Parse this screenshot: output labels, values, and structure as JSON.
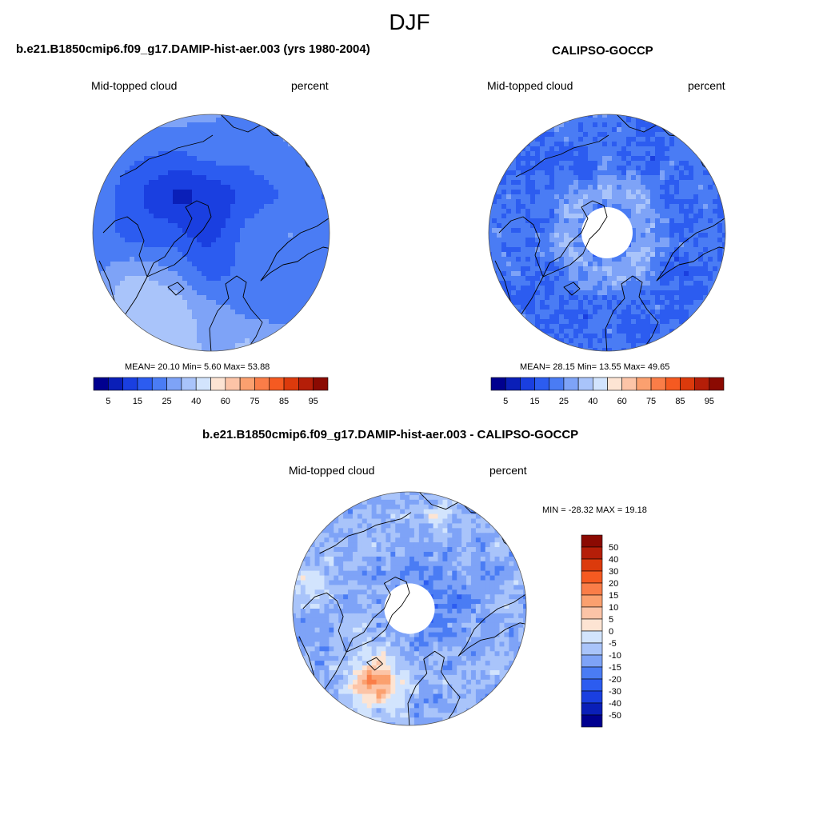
{
  "figure": {
    "season": "DJF"
  },
  "panels": [
    {
      "title": "b.e21.B1850cmip6.f09_g17.DAMIP-hist-aer.003 (yrs 1980-2004)",
      "left_label": "Mid-topped cloud",
      "right_label": "percent",
      "stats": "MEAN=  20.10  Min=   5.60  Max=  53.88",
      "field": "model"
    },
    {
      "title": "CALIPSO-GOCCP",
      "left_label": "Mid-topped cloud",
      "right_label": "percent",
      "stats": "MEAN=  28.15  Min=  13.55  Max=  49.65",
      "field": "obs"
    },
    {
      "title": "b.e21.B1850cmip6.f09_g17.DAMIP-hist-aer.003 - CALIPSO-GOCCP",
      "left_label": "Mid-topped cloud",
      "right_label": "percent",
      "stats": "MIN = -28.32 MAX =  19.18",
      "field": "diff"
    }
  ],
  "colorbars": {
    "abs": {
      "ticks": [
        "5",
        "15",
        "25",
        "40",
        "60",
        "75",
        "85",
        "95"
      ],
      "colors": [
        "#00008f",
        "#0a1fb8",
        "#1a3fe0",
        "#2c5cf0",
        "#4a7cf4",
        "#7ea3f7",
        "#a9c4fa",
        "#d2e4fd",
        "#fde4d3",
        "#fcc4a7",
        "#fba06f",
        "#fa7d48",
        "#f55a21",
        "#dc3a0c",
        "#b51e08",
        "#8b0a02"
      ]
    },
    "diff": {
      "ticks": [
        "50",
        "40",
        "30",
        "20",
        "15",
        "10",
        "5",
        "0",
        "-5",
        "-10",
        "-15",
        "-20",
        "-30",
        "-40",
        "-50"
      ],
      "colors": [
        "#8b0a02",
        "#b51e08",
        "#dc3a0c",
        "#f55a21",
        "#fa7d48",
        "#fba06f",
        "#fcc4a7",
        "#fde4d3",
        "#d2e4fd",
        "#a9c4fa",
        "#7ea3f7",
        "#4a7cf4",
        "#2c5cf0",
        "#1a3fe0",
        "#0a1fb8",
        "#00008f"
      ]
    }
  },
  "colors": {
    "coastline": "#000000",
    "map_border": "#555555"
  }
}
